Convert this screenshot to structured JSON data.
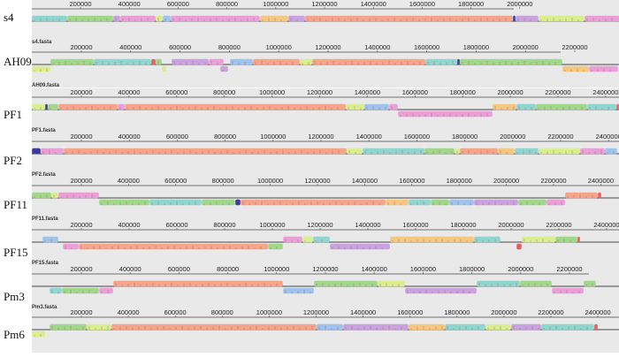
{
  "colors": {
    "salmon": "#f4a58a",
    "green": "#9fd88a",
    "lime": "#d9ee8f",
    "teal": "#8ed6cf",
    "magenta": "#e9a0d8",
    "purple": "#c9a3e0",
    "orange": "#f6c77e",
    "blue": "#9ec3ec",
    "red": "#e86060",
    "navy": "#3a3aa0"
  },
  "genomes": [
    {
      "name": "s4",
      "fasta": "s4.fasta",
      "ticks": [
        "200000",
        "400000",
        "600000",
        "800000",
        "1000000",
        "1200000",
        "1400000",
        "1600000",
        "1800000",
        "2000000"
      ]
    },
    {
      "name": "AH09",
      "fasta": "AH09.fasta",
      "ticks": [
        "200000",
        "400000",
        "600000",
        "800000",
        "1000000",
        "1200000",
        "1400000",
        "1600000",
        "1800000",
        "2000000",
        "2200000"
      ]
    },
    {
      "name": "PF1",
      "fasta": "PF1.fasta",
      "ticks": [
        "200000",
        "400000",
        "600000",
        "800000",
        "1000000",
        "1200000",
        "1400000",
        "1600000",
        "1800000",
        "2000000",
        "2200000",
        "2400000"
      ]
    },
    {
      "name": "PF2",
      "fasta": "PF2.fasta",
      "ticks": [
        "200000",
        "400000",
        "600000",
        "800000",
        "1000000",
        "1200000",
        "1400000",
        "1600000",
        "1800000",
        "2000000",
        "2200000",
        "2400000"
      ]
    },
    {
      "name": "PF11",
      "fasta": "PF11.fasta",
      "ticks": [
        "200000",
        "400000",
        "600000",
        "800000",
        "1000000",
        "1200000",
        "1400000",
        "1600000",
        "1800000",
        "2000000",
        "2200000",
        "2400000"
      ]
    },
    {
      "name": "PF15",
      "fasta": "PF15.fasta",
      "ticks": [
        "200000",
        "400000",
        "600000",
        "800000",
        "1000000",
        "1200000",
        "1400000",
        "1600000",
        "1800000",
        "2000000",
        "2200000",
        "2400000"
      ]
    },
    {
      "name": "Pm3",
      "fasta": "Pm3.fasta",
      "ticks": [
        "200000",
        "400000",
        "600000",
        "800000",
        "1000000",
        "1200000",
        "1400000",
        "1600000",
        "1800000",
        "2000000",
        "2200000"
      ]
    },
    {
      "name": "Pm6",
      "fasta": null,
      "ticks": [
        "200000",
        "400000",
        "600000",
        "800000",
        "1000000",
        "1200000",
        "1400000",
        "1600000",
        "1800000",
        "2000000",
        "2200000",
        "2400000"
      ]
    }
  ],
  "blocks": [
    [
      [
        "teal",
        0,
        40,
        "u"
      ],
      [
        "green",
        40,
        92,
        "u"
      ],
      [
        "purple",
        92,
        100,
        "u"
      ],
      [
        "magenta",
        100,
        140,
        "u"
      ],
      [
        "lime",
        140,
        148,
        "u"
      ],
      [
        "blue",
        148,
        157,
        "u"
      ],
      [
        "magenta",
        157,
        258,
        "u"
      ],
      [
        "orange",
        258,
        290,
        "u"
      ],
      [
        "purple",
        290,
        309,
        "u"
      ],
      [
        "salmon",
        309,
        544,
        "u"
      ],
      [
        "navy",
        544,
        547,
        "u"
      ],
      [
        "purple",
        547,
        573,
        "u"
      ],
      [
        "lime",
        573,
        625,
        "u"
      ],
      [
        "magenta",
        625,
        665,
        "u"
      ]
    ],
    [
      [
        "lime",
        0,
        21,
        "d"
      ],
      [
        "green",
        21,
        70,
        "u"
      ],
      [
        "teal",
        70,
        135,
        "u"
      ],
      [
        "red",
        135,
        140,
        "u"
      ],
      [
        "green",
        140,
        147,
        "u"
      ],
      [
        "lime",
        147,
        152,
        "d"
      ],
      [
        "purple",
        158,
        200,
        "u"
      ],
      [
        "magenta",
        200,
        217,
        "u"
      ],
      [
        "purple",
        213,
        222,
        "d"
      ],
      [
        "blue",
        224,
        250,
        "u"
      ],
      [
        "salmon",
        250,
        303,
        "u"
      ],
      [
        "lime",
        303,
        317,
        "u"
      ],
      [
        "salmon",
        317,
        445,
        "u"
      ],
      [
        "teal",
        445,
        481,
        "u"
      ],
      [
        "navy",
        481,
        484,
        "u"
      ],
      [
        "green",
        484,
        600,
        "u"
      ],
      [
        "orange",
        600,
        630,
        "d"
      ],
      [
        "magenta",
        630,
        663,
        "d"
      ]
    ],
    [
      [
        "lime",
        0,
        15,
        "u"
      ],
      [
        "navy",
        15,
        18,
        "u"
      ],
      [
        "green",
        18,
        30,
        "u"
      ],
      [
        "salmon",
        30,
        97,
        "u"
      ],
      [
        "magenta",
        97,
        105,
        "u"
      ],
      [
        "salmon",
        105,
        355,
        "u"
      ],
      [
        "lime",
        355,
        376,
        "u"
      ],
      [
        "blue",
        376,
        404,
        "u"
      ],
      [
        "magenta",
        404,
        414,
        "u"
      ],
      [
        "magenta",
        414,
        521,
        "d"
      ],
      [
        "orange",
        521,
        548,
        "u"
      ],
      [
        "teal",
        548,
        570,
        "u"
      ],
      [
        "green",
        570,
        628,
        "u"
      ],
      [
        "teal",
        628,
        661,
        "u"
      ],
      [
        "red",
        661,
        664,
        "u"
      ]
    ],
    [
      [
        "navy",
        0,
        10,
        "u"
      ],
      [
        "magenta",
        10,
        36,
        "u"
      ],
      [
        "salmon",
        36,
        356,
        "u"
      ],
      [
        "lime",
        356,
        374,
        "u"
      ],
      [
        "teal",
        374,
        444,
        "u"
      ],
      [
        "green",
        444,
        478,
        "u"
      ],
      [
        "lime",
        478,
        484,
        "u"
      ],
      [
        "salmon",
        484,
        527,
        "u"
      ],
      [
        "orange",
        527,
        546,
        "u"
      ],
      [
        "teal",
        546,
        573,
        "u"
      ],
      [
        "lime",
        573,
        620,
        "u"
      ],
      [
        "magenta",
        620,
        648,
        "u"
      ],
      [
        "blue",
        648,
        662,
        "u"
      ]
    ],
    [
      [
        "green",
        0,
        22,
        "u"
      ],
      [
        "lime",
        22,
        30,
        "u"
      ],
      [
        "magenta",
        30,
        76,
        "u"
      ],
      [
        "green",
        76,
        133,
        "d"
      ],
      [
        "teal",
        133,
        192,
        "d"
      ],
      [
        "green",
        192,
        230,
        "d"
      ],
      [
        "navy",
        230,
        236,
        "d"
      ],
      [
        "salmon",
        236,
        400,
        "d"
      ],
      [
        "orange",
        400,
        426,
        "d"
      ],
      [
        "teal",
        426,
        451,
        "d"
      ],
      [
        "green",
        451,
        472,
        "d"
      ],
      [
        "blue",
        472,
        500,
        "d"
      ],
      [
        "purple",
        500,
        550,
        "d"
      ],
      [
        "green",
        550,
        582,
        "d"
      ],
      [
        "magenta",
        582,
        603,
        "d"
      ],
      [
        "salmon",
        603,
        640,
        "u"
      ],
      [
        "red",
        640,
        644,
        "u"
      ]
    ],
    [
      [
        "blue",
        12,
        30,
        "u"
      ],
      [
        "magenta",
        35,
        53,
        "d"
      ],
      [
        "salmon",
        53,
        267,
        "d"
      ],
      [
        "green",
        267,
        284,
        "d"
      ],
      [
        "magenta",
        284,
        306,
        "u"
      ],
      [
        "lime",
        306,
        318,
        "u"
      ],
      [
        "teal",
        318,
        337,
        "u"
      ],
      [
        "purple",
        337,
        405,
        "d"
      ],
      [
        "orange",
        405,
        500,
        "u"
      ],
      [
        "teal",
        500,
        530,
        "u"
      ],
      [
        "red",
        548,
        554,
        "d"
      ],
      [
        "lime",
        554,
        592,
        "u"
      ],
      [
        "green",
        592,
        617,
        "u"
      ],
      [
        "red",
        617,
        620,
        "u"
      ]
    ],
    [
      [
        "teal",
        20,
        34,
        "d"
      ],
      [
        "green",
        34,
        76,
        "d"
      ],
      [
        "magenta",
        76,
        92,
        "d"
      ],
      [
        "salmon",
        92,
        284,
        "u"
      ],
      [
        "blue",
        284,
        319,
        "d"
      ],
      [
        "green",
        319,
        391,
        "u"
      ],
      [
        "lime",
        391,
        422,
        "u"
      ],
      [
        "purple",
        422,
        503,
        "d"
      ],
      [
        "teal",
        503,
        552,
        "u"
      ],
      [
        "green",
        552,
        588,
        "u"
      ],
      [
        "magenta",
        588,
        624,
        "d"
      ],
      [
        "green",
        624,
        638,
        "u"
      ]
    ],
    [
      [
        "lime",
        0,
        15,
        "d"
      ],
      [
        "green",
        20,
        62,
        "u"
      ],
      [
        "lime",
        62,
        90,
        "u"
      ],
      [
        "salmon",
        90,
        322,
        "u"
      ],
      [
        "blue",
        322,
        352,
        "u"
      ],
      [
        "purple",
        352,
        426,
        "u"
      ],
      [
        "orange",
        426,
        467,
        "u"
      ],
      [
        "teal",
        467,
        513,
        "u"
      ],
      [
        "lime",
        513,
        542,
        "u"
      ],
      [
        "purple",
        542,
        576,
        "u"
      ],
      [
        "teal",
        576,
        636,
        "u"
      ],
      [
        "red",
        636,
        640,
        "u"
      ]
    ]
  ]
}
